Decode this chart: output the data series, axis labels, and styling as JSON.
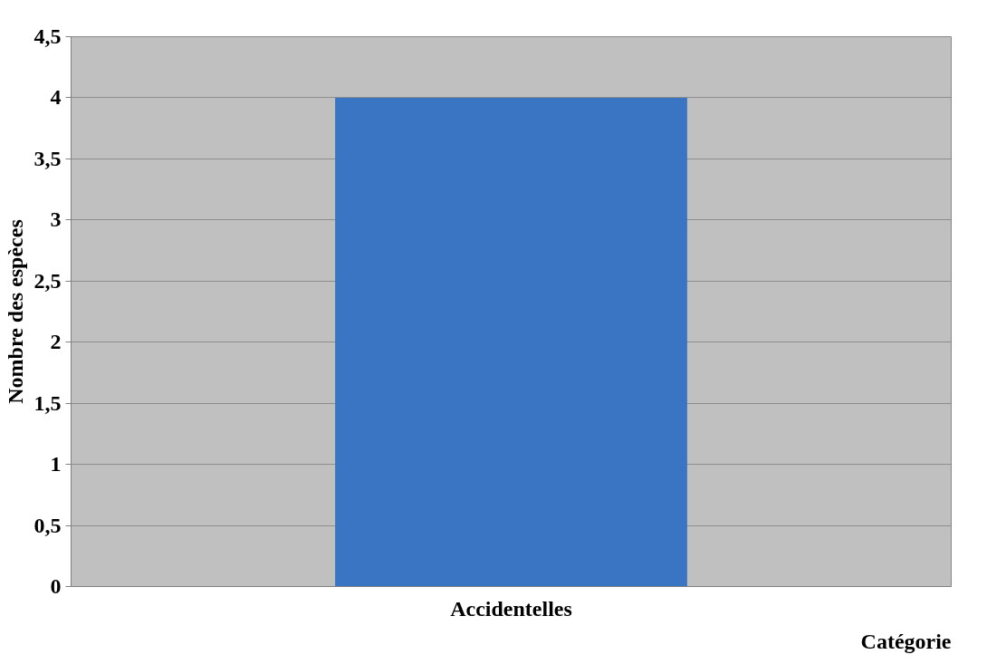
{
  "chart_data": {
    "type": "bar",
    "ylabel": "Nombre des espèces",
    "xlabel": "Catégorie",
    "categories": [
      "Accidentelles"
    ],
    "values": [
      4
    ],
    "color": "#3a75c3",
    "ylim": [
      0,
      4.5
    ],
    "yticks": [
      0,
      {
        "value": 0.5,
        "label": "0,5"
      },
      1,
      {
        "value": 1.5,
        "label": "1,5"
      },
      2,
      {
        "value": 2.5,
        "label": "2,5"
      },
      3,
      {
        "value": 3.5,
        "label": "3,5"
      },
      4,
      {
        "value": 4.5,
        "label": "4,5"
      }
    ],
    "grid": "y"
  }
}
